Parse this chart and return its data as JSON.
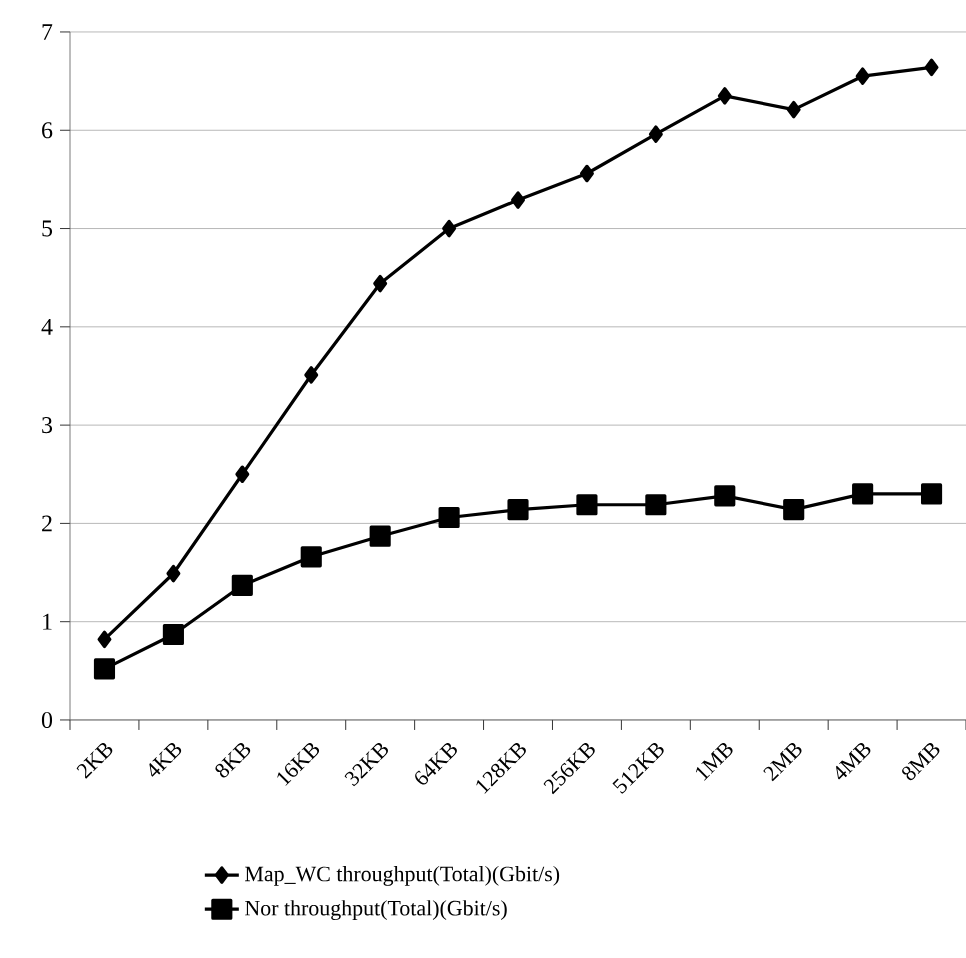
{
  "chart_data": {
    "type": "line",
    "categories": [
      "2KB",
      "4KB",
      "8KB",
      "16KB",
      "32KB",
      "64KB",
      "128KB",
      "256KB",
      "512KB",
      "1MB",
      "2MB",
      "4MB",
      "8MB"
    ],
    "series": [
      {
        "name": "Map_WC  throughput(Total)(Gbit/s)",
        "color": "#000000",
        "marker": "diamond",
        "values": [
          0.82,
          1.49,
          2.5,
          3.51,
          4.44,
          5.0,
          5.29,
          5.56,
          5.96,
          6.35,
          6.21,
          6.55,
          6.64
        ]
      },
      {
        "name": "Nor throughput(Total)(Gbit/s)",
        "color": "#000000",
        "marker": "square",
        "values": [
          0.52,
          0.87,
          1.37,
          1.66,
          1.87,
          2.06,
          2.14,
          2.19,
          2.19,
          2.28,
          2.14,
          2.3,
          2.3
        ]
      }
    ],
    "ylim": [
      0,
      7
    ],
    "yticks": [
      0,
      1,
      2,
      3,
      4,
      5,
      6,
      7
    ],
    "grid": "y",
    "legend": "bottom",
    "line_style": "solid"
  }
}
